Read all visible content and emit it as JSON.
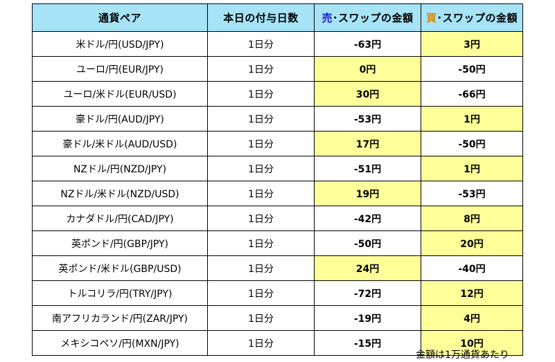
{
  "header": {
    "pair": "通貨ペア",
    "days": "本日の付与日数",
    "sell_mark": "売",
    "sell_rest": "･スワップの金額",
    "buy_mark": "買",
    "buy_rest": "･スワップの金額"
  },
  "rows": [
    {
      "pair": "米ドル/円(USD/JPY)",
      "days": "1日分",
      "sell": "-63円",
      "buy": "3円",
      "highlight": "buy"
    },
    {
      "pair": "ユーロ/円(EUR/JPY)",
      "days": "1日分",
      "sell": "0円",
      "buy": "-50円",
      "highlight": "sell"
    },
    {
      "pair": "ユーロ/米ドル(EUR/USD)",
      "days": "1日分",
      "sell": "30円",
      "buy": "-66円",
      "highlight": "sell"
    },
    {
      "pair": "豪ドル/円(AUD/JPY)",
      "days": "1日分",
      "sell": "-53円",
      "buy": "1円",
      "highlight": "buy"
    },
    {
      "pair": "豪ドル/米ドル(AUD/USD)",
      "days": "1日分",
      "sell": "17円",
      "buy": "-50円",
      "highlight": "sell"
    },
    {
      "pair": "NZドル/円(NZD/JPY)",
      "days": "1日分",
      "sell": "-51円",
      "buy": "1円",
      "highlight": "buy"
    },
    {
      "pair": "NZドル/米ドル(NZD/USD)",
      "days": "1日分",
      "sell": "19円",
      "buy": "-53円",
      "highlight": "sell"
    },
    {
      "pair": "カナダドル/円(CAD/JPY)",
      "days": "1日分",
      "sell": "-42円",
      "buy": "8円",
      "highlight": "buy"
    },
    {
      "pair": "英ポンド/円(GBP/JPY)",
      "days": "1日分",
      "sell": "-50円",
      "buy": "20円",
      "highlight": "buy"
    },
    {
      "pair": "英ポンド/米ドル(GBP/USD)",
      "days": "1日分",
      "sell": "24円",
      "buy": "-40円",
      "highlight": "sell"
    },
    {
      "pair": "トルコリラ/円(TRY/JPY)",
      "days": "1日分",
      "sell": "-72円",
      "buy": "12円",
      "highlight": "buy"
    },
    {
      "pair": "南アフリカランド/円(ZAR/JPY)",
      "days": "1日分",
      "sell": "-19円",
      "buy": "4円",
      "highlight": "buy"
    },
    {
      "pair": "メキシコペソ/円(MXN/JPY)",
      "days": "1日分",
      "sell": "-15円",
      "buy": "10円",
      "highlight": "buy"
    }
  ],
  "note": "金額は1万通貨あたり",
  "colors": {
    "header_bg": "#a6e3f7",
    "highlight_bg": "#ffff99",
    "sell_text": "#1a1ad8",
    "buy_text": "#e07010",
    "buy_mark": "#d98c00"
  }
}
